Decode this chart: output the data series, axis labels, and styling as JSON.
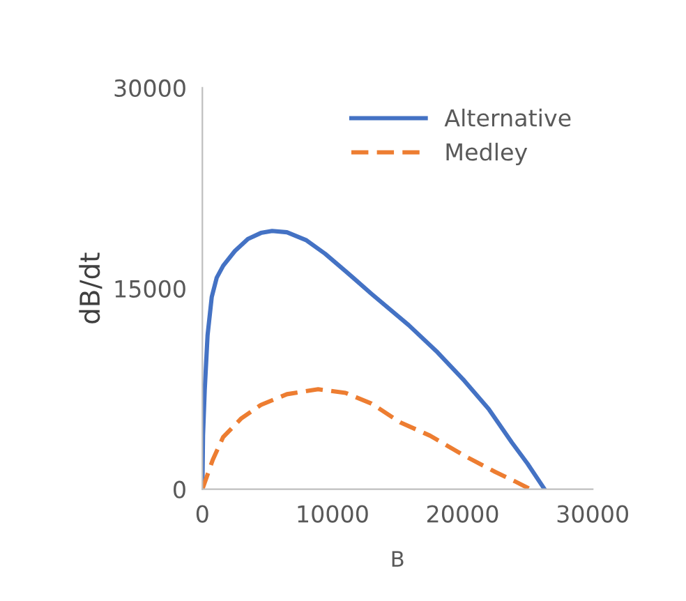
{
  "chart_data": {
    "type": "line",
    "xlabel": "B",
    "ylabel": "dB/dt",
    "xlim": [
      0,
      30000
    ],
    "xticks": [
      0,
      10000,
      20000,
      30000
    ],
    "ylim": [
      0,
      30000
    ],
    "yticks": [
      0,
      15000,
      30000
    ],
    "grid": false,
    "legend": "top right",
    "marker": "none",
    "series": [
      {
        "name": "Alternative",
        "color": "#4472c4",
        "line_style": "solid",
        "x": [
          0,
          50,
          180,
          400,
          720,
          1100,
          1600,
          2500,
          3500,
          4500,
          5360,
          6500,
          8000,
          9430,
          11000,
          13000,
          15860,
          18000,
          20140,
          22000,
          23780,
          25000,
          26300
        ],
        "values": [
          0,
          4000,
          7400,
          11500,
          14360,
          15800,
          16700,
          17800,
          18700,
          19150,
          19300,
          19200,
          18600,
          17600,
          16300,
          14600,
          12260,
          10300,
          8100,
          6000,
          3500,
          1900,
          0
        ]
      },
      {
        "name": "Medley",
        "color": "#ed7d31",
        "line_style": "dashed",
        "x": [
          0,
          800,
          1600,
          3000,
          4500,
          6500,
          8900,
          11000,
          13000,
          15200,
          17500,
          20140,
          22500,
          24000,
          25200
        ],
        "values": [
          0,
          2200,
          3900,
          5300,
          6300,
          7100,
          7470,
          7200,
          6400,
          5000,
          4000,
          2500,
          1300,
          600,
          0
        ]
      }
    ]
  }
}
